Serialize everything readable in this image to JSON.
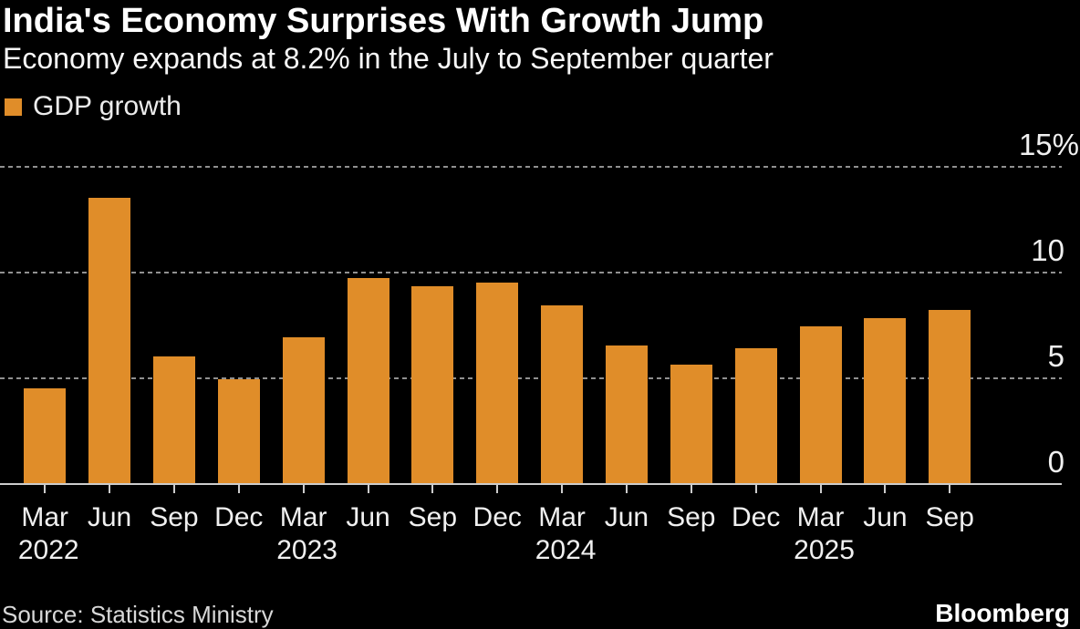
{
  "header": {
    "title": "India's Economy Surprises With Growth Jump",
    "subtitle": "Economy expands at 8.2% in the July to September quarter"
  },
  "legend": {
    "label": "GDP growth",
    "swatch_color": "#E08D29"
  },
  "chart_data": {
    "type": "bar",
    "title": "India's Economy Surprises With Growth Jump",
    "subtitle": "Economy expands at 8.2% in the July to September quarter",
    "series_name": "GDP growth",
    "unit": "%",
    "categories": [
      "Mar",
      "Jun",
      "Sep",
      "Dec",
      "Mar",
      "Jun",
      "Sep",
      "Dec",
      "Mar",
      "Jun",
      "Sep",
      "Dec",
      "Mar",
      "Jun",
      "Sep"
    ],
    "year_row": [
      "2022",
      "",
      "",
      "",
      "2023",
      "",
      "",
      "",
      "2024",
      "",
      "",
      "",
      "2025",
      "",
      ""
    ],
    "values": [
      4.5,
      13.5,
      6.0,
      4.9,
      6.9,
      9.7,
      9.3,
      9.5,
      8.4,
      6.5,
      5.6,
      6.4,
      7.4,
      7.8,
      8.2
    ],
    "y_ticks": [
      0,
      5,
      10,
      15
    ],
    "y_tick_labels": [
      "0",
      "5",
      "10",
      "15%"
    ],
    "ylim": [
      0,
      15.6
    ],
    "grid": "horizontal-dashed",
    "legend_position": "top-left"
  },
  "footer": {
    "source": "Source: Statistics Ministry",
    "brand": "Bloomberg"
  },
  "colors": {
    "background": "#000000",
    "bar": "#E08D29",
    "grid": "#909090",
    "axis": "#cccccc",
    "title_text": "#ffffff",
    "label_text": "#f0f0f0",
    "source_text": "#d8d8d8"
  }
}
